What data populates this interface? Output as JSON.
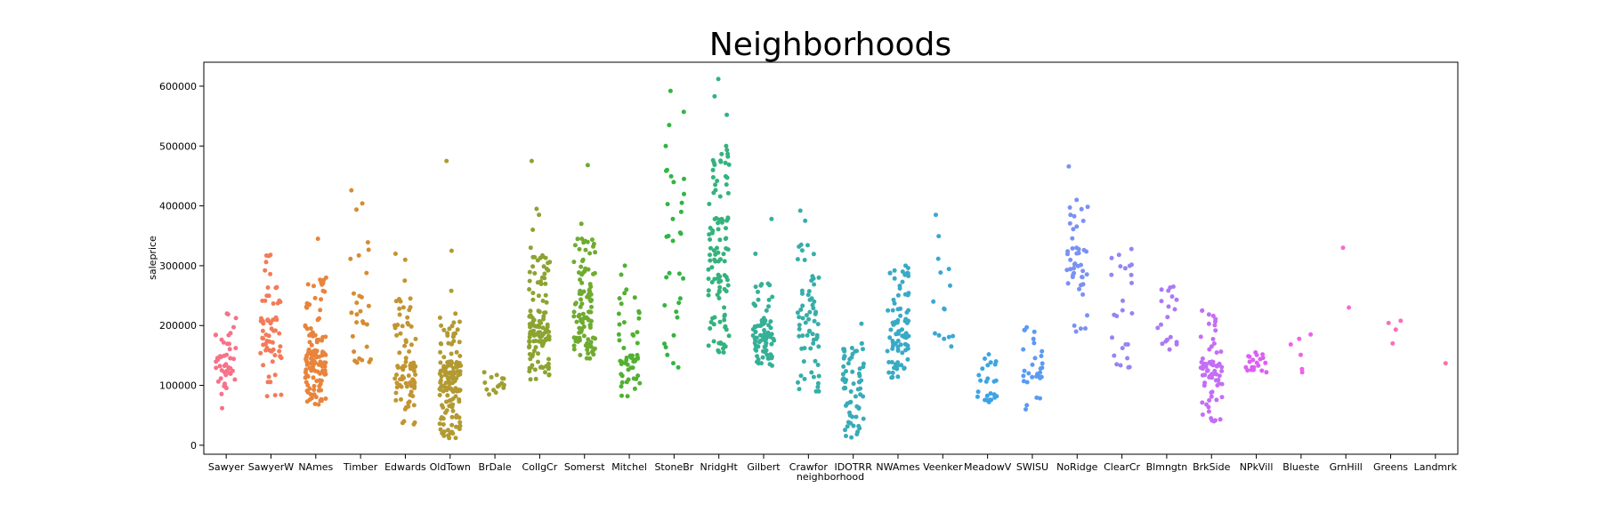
{
  "chart_data": {
    "type": "scatter",
    "title": "Neighborhoods",
    "xlabel": "neighborhood",
    "ylabel": "saleprice",
    "ylim": [
      -15000,
      640000
    ],
    "yticks": [
      0,
      100000,
      200000,
      300000,
      400000,
      500000,
      600000
    ],
    "ytick_labels": [
      "0",
      "100000",
      "200000",
      "300000",
      "400000",
      "500000",
      "600000"
    ],
    "grid": false,
    "categories": [
      "Sawyer",
      "SawyerW",
      "NAmes",
      "Timber",
      "Edwards",
      "OldTown",
      "BrDale",
      "CollgCr",
      "Somerst",
      "Mitchel",
      "StoneBr",
      "NridgHt",
      "Gilbert",
      "Crawfor",
      "IDOTRR",
      "NWAmes",
      "Veenker",
      "MeadowV",
      "SWISU",
      "NoRidge",
      "ClearCr",
      "Blmngtn",
      "BrkSide",
      "NPkVill",
      "Blueste",
      "GrnHill",
      "Greens",
      "Landmrk"
    ],
    "colors": [
      "#f77189",
      "#f37b59",
      "#e8843c",
      "#d58c32",
      "#c29531",
      "#b29a32",
      "#a09e31",
      "#8ba431",
      "#6fab31",
      "#50b131",
      "#33b443",
      "#34b27d",
      "#35b096",
      "#36aea8",
      "#37acb7",
      "#38aac5",
      "#3aa7d5",
      "#3ca4e6",
      "#5a9af4",
      "#7a91f4",
      "#9385f4",
      "#ab79f4",
      "#c46ef4",
      "#dc5ff4",
      "#f161e8",
      "#f56ad1",
      "#f66fbd",
      "#f773a6"
    ],
    "series": [
      {
        "name": "Sawyer",
        "summary": {
          "n": 45,
          "min": 62000,
          "q1": 115000,
          "median": 135000,
          "q3": 150000,
          "max": 220000,
          "outliers": []
        }
      },
      {
        "name": "SawyerW",
        "summary": {
          "n": 65,
          "min": 82000,
          "q1": 150000,
          "median": 180000,
          "q3": 220000,
          "max": 318000,
          "outliers": []
        }
      },
      {
        "name": "NAmes",
        "summary": {
          "n": 130,
          "min": 68000,
          "q1": 118000,
          "median": 140000,
          "q3": 160000,
          "max": 280000,
          "outliers": [
            345000
          ]
        }
      },
      {
        "name": "Timber",
        "summary": {
          "n": 30,
          "min": 138000,
          "q1": 180000,
          "median": 230000,
          "q3": 290000,
          "max": 426000,
          "outliers": []
        }
      },
      {
        "name": "Edwards",
        "summary": {
          "n": 85,
          "min": 35000,
          "q1": 95000,
          "median": 118000,
          "q3": 140000,
          "max": 245000,
          "outliers": [
            275000,
            310000,
            320000
          ]
        }
      },
      {
        "name": "OldTown",
        "summary": {
          "n": 150,
          "min": 12000,
          "q1": 90000,
          "median": 115000,
          "q3": 140000,
          "max": 220000,
          "outliers": [
            258000,
            325000,
            475000
          ]
        }
      },
      {
        "name": "BrDale",
        "summary": {
          "n": 15,
          "min": 85000,
          "q1": 92000,
          "median": 100000,
          "q3": 110000,
          "max": 122000,
          "outliers": []
        }
      },
      {
        "name": "CollgCr",
        "summary": {
          "n": 120,
          "min": 110000,
          "q1": 170000,
          "median": 195000,
          "q3": 225000,
          "max": 330000,
          "outliers": [
            360000,
            385000,
            395000,
            475000
          ]
        }
      },
      {
        "name": "Somerst",
        "summary": {
          "n": 110,
          "min": 145000,
          "q1": 190000,
          "median": 225000,
          "q3": 260000,
          "max": 345000,
          "outliers": [
            370000,
            468000
          ]
        }
      },
      {
        "name": "Mitchel",
        "summary": {
          "n": 50,
          "min": 82000,
          "q1": 135000,
          "median": 155000,
          "q3": 185000,
          "max": 260000,
          "outliers": [
            285000,
            300000
          ]
        }
      },
      {
        "name": "StoneBr",
        "summary": {
          "n": 30,
          "min": 130000,
          "q1": 210000,
          "median": 300000,
          "q3": 380000,
          "max": 460000,
          "outliers": [
            500000,
            535000,
            557000,
            592000
          ]
        }
      },
      {
        "name": "NridgHt",
        "summary": {
          "n": 110,
          "min": 155000,
          "q1": 250000,
          "median": 310000,
          "q3": 385000,
          "max": 500000,
          "outliers": [
            552000,
            583000,
            612000
          ]
        }
      },
      {
        "name": "Gilbert",
        "summary": {
          "n": 80,
          "min": 133000,
          "q1": 170000,
          "median": 185000,
          "q3": 210000,
          "max": 270000,
          "outliers": [
            320000,
            378000
          ]
        }
      },
      {
        "name": "Crawfor",
        "summary": {
          "n": 65,
          "min": 90000,
          "q1": 160000,
          "median": 200000,
          "q3": 240000,
          "max": 335000,
          "outliers": [
            375000,
            392000
          ]
        }
      },
      {
        "name": "IDOTRR",
        "summary": {
          "n": 65,
          "min": 13000,
          "q1": 55000,
          "median": 90000,
          "q3": 122000,
          "max": 170000,
          "outliers": [
            203000
          ]
        }
      },
      {
        "name": "NWAmes",
        "summary": {
          "n": 85,
          "min": 113000,
          "q1": 160000,
          "median": 180000,
          "q3": 210000,
          "max": 300000,
          "outliers": []
        }
      },
      {
        "name": "Veenker",
        "summary": {
          "n": 15,
          "min": 165000,
          "q1": 200000,
          "median": 250000,
          "q3": 290000,
          "max": 385000,
          "outliers": []
        }
      },
      {
        "name": "MeadowV",
        "summary": {
          "n": 25,
          "min": 72000,
          "q1": 82000,
          "median": 92000,
          "q3": 120000,
          "max": 152000,
          "outliers": []
        }
      },
      {
        "name": "SWISU",
        "summary": {
          "n": 30,
          "min": 60000,
          "q1": 105000,
          "median": 125000,
          "q3": 145000,
          "max": 197000,
          "outliers": []
        }
      },
      {
        "name": "NoRidge",
        "summary": {
          "n": 45,
          "min": 190000,
          "q1": 265000,
          "median": 300000,
          "q3": 335000,
          "max": 410000,
          "outliers": [
            466000
          ]
        }
      },
      {
        "name": "ClearCr",
        "summary": {
          "n": 25,
          "min": 130000,
          "q1": 165000,
          "median": 200000,
          "q3": 240000,
          "max": 328000,
          "outliers": []
        }
      },
      {
        "name": "Blmngtn",
        "summary": {
          "n": 20,
          "min": 160000,
          "q1": 180000,
          "median": 195000,
          "q3": 225000,
          "max": 265000,
          "outliers": []
        }
      },
      {
        "name": "BrkSide",
        "summary": {
          "n": 75,
          "min": 40000,
          "q1": 100000,
          "median": 125000,
          "q3": 145000,
          "max": 225000,
          "outliers": []
        }
      },
      {
        "name": "NPkVill",
        "summary": {
          "n": 20,
          "min": 122000,
          "q1": 135000,
          "median": 142000,
          "q3": 148000,
          "max": 155000,
          "outliers": []
        }
      },
      {
        "name": "Blueste",
        "summary": {
          "n": 6,
          "min": 122000,
          "q1": 125000,
          "median": 150000,
          "q3": 165000,
          "max": 185000,
          "outliers": []
        }
      },
      {
        "name": "GrnHill",
        "summary": {
          "n": 2,
          "min": 230000,
          "q1": 230000,
          "median": 280000,
          "q3": 330000,
          "max": 330000,
          "outliers": []
        }
      },
      {
        "name": "Greens",
        "summary": {
          "n": 4,
          "min": 170000,
          "q1": 185000,
          "median": 195000,
          "q3": 205000,
          "max": 208000,
          "outliers": []
        }
      },
      {
        "name": "Landmrk",
        "summary": {
          "n": 1,
          "min": 137000,
          "q1": 137000,
          "median": 137000,
          "q3": 137000,
          "max": 137000,
          "outliers": []
        }
      }
    ]
  }
}
